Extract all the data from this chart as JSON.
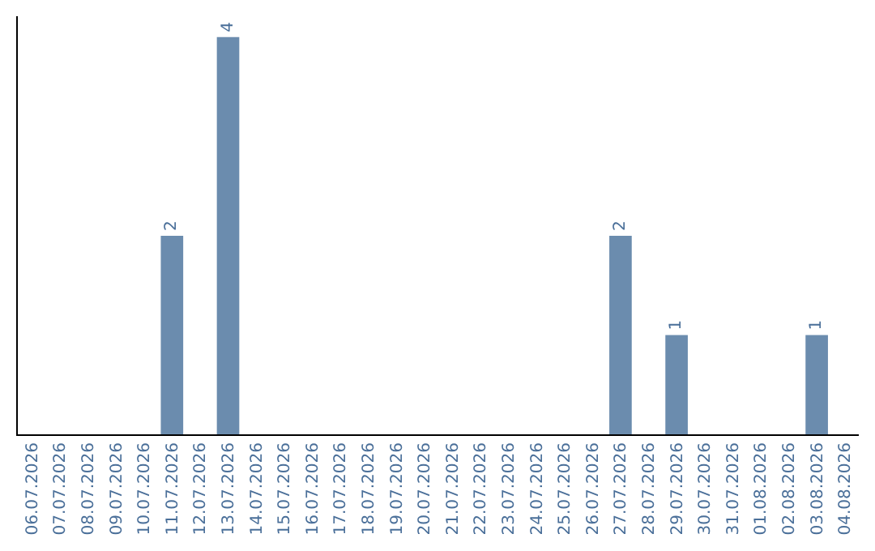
{
  "chart_data": {
    "type": "bar",
    "categories": [
      "06.07.2026",
      "07.07.2026",
      "08.07.2026",
      "09.07.2026",
      "10.07.2026",
      "11.07.2026",
      "12.07.2026",
      "13.07.2026",
      "14.07.2026",
      "15.07.2026",
      "16.07.2026",
      "17.07.2026",
      "18.07.2026",
      "19.07.2026",
      "20.07.2026",
      "21.07.2026",
      "22.07.2026",
      "23.07.2026",
      "24.07.2026",
      "25.07.2026",
      "26.07.2026",
      "27.07.2026",
      "28.07.2026",
      "29.07.2026",
      "30.07.2026",
      "31.07.2026",
      "01.08.2026",
      "02.08.2026",
      "03.08.2026",
      "04.08.2026"
    ],
    "values": [
      0,
      0,
      0,
      0,
      0,
      2,
      0,
      4,
      0,
      0,
      0,
      0,
      0,
      0,
      0,
      0,
      0,
      0,
      0,
      0,
      0,
      2,
      0,
      1,
      0,
      0,
      0,
      0,
      1,
      0
    ],
    "value_labels": [
      null,
      null,
      null,
      null,
      null,
      "2",
      null,
      "4",
      null,
      null,
      null,
      null,
      null,
      null,
      null,
      null,
      null,
      null,
      null,
      null,
      null,
      "2",
      null,
      "1",
      null,
      null,
      null,
      null,
      "1",
      null
    ],
    "color": "#6b8cae",
    "tick_labels": "x"
  }
}
